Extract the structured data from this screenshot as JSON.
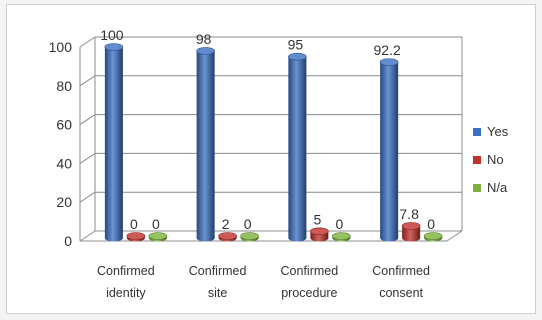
{
  "chart_data": {
    "type": "bar",
    "style": "3d-cylinder",
    "categories": [
      [
        "Confirmed",
        "identity"
      ],
      [
        "Confirmed",
        "site"
      ],
      [
        "Confirmed",
        "procedure"
      ],
      [
        "Confirmed",
        "consent"
      ]
    ],
    "series": [
      {
        "name": "Yes",
        "values": [
          100,
          98,
          95,
          92.2
        ],
        "labels": [
          "100",
          "98",
          "95",
          "92.2"
        ],
        "color": "#3a6fc4"
      },
      {
        "name": "No",
        "values": [
          0,
          2,
          5,
          7.8
        ],
        "labels": [
          "0",
          "2",
          "5",
          "7.8"
        ],
        "color": "#c0312b"
      },
      {
        "name": "N/a",
        "values": [
          0,
          0,
          0,
          0
        ],
        "labels": [
          "0",
          "0",
          "0",
          "0"
        ],
        "color": "#7bb13a"
      }
    ],
    "ylim": [
      0,
      100
    ],
    "yticks": [
      0,
      20,
      40,
      60,
      80,
      100
    ],
    "grid": true,
    "legend_position": "right",
    "title": "",
    "xlabel": "",
    "ylabel": ""
  }
}
